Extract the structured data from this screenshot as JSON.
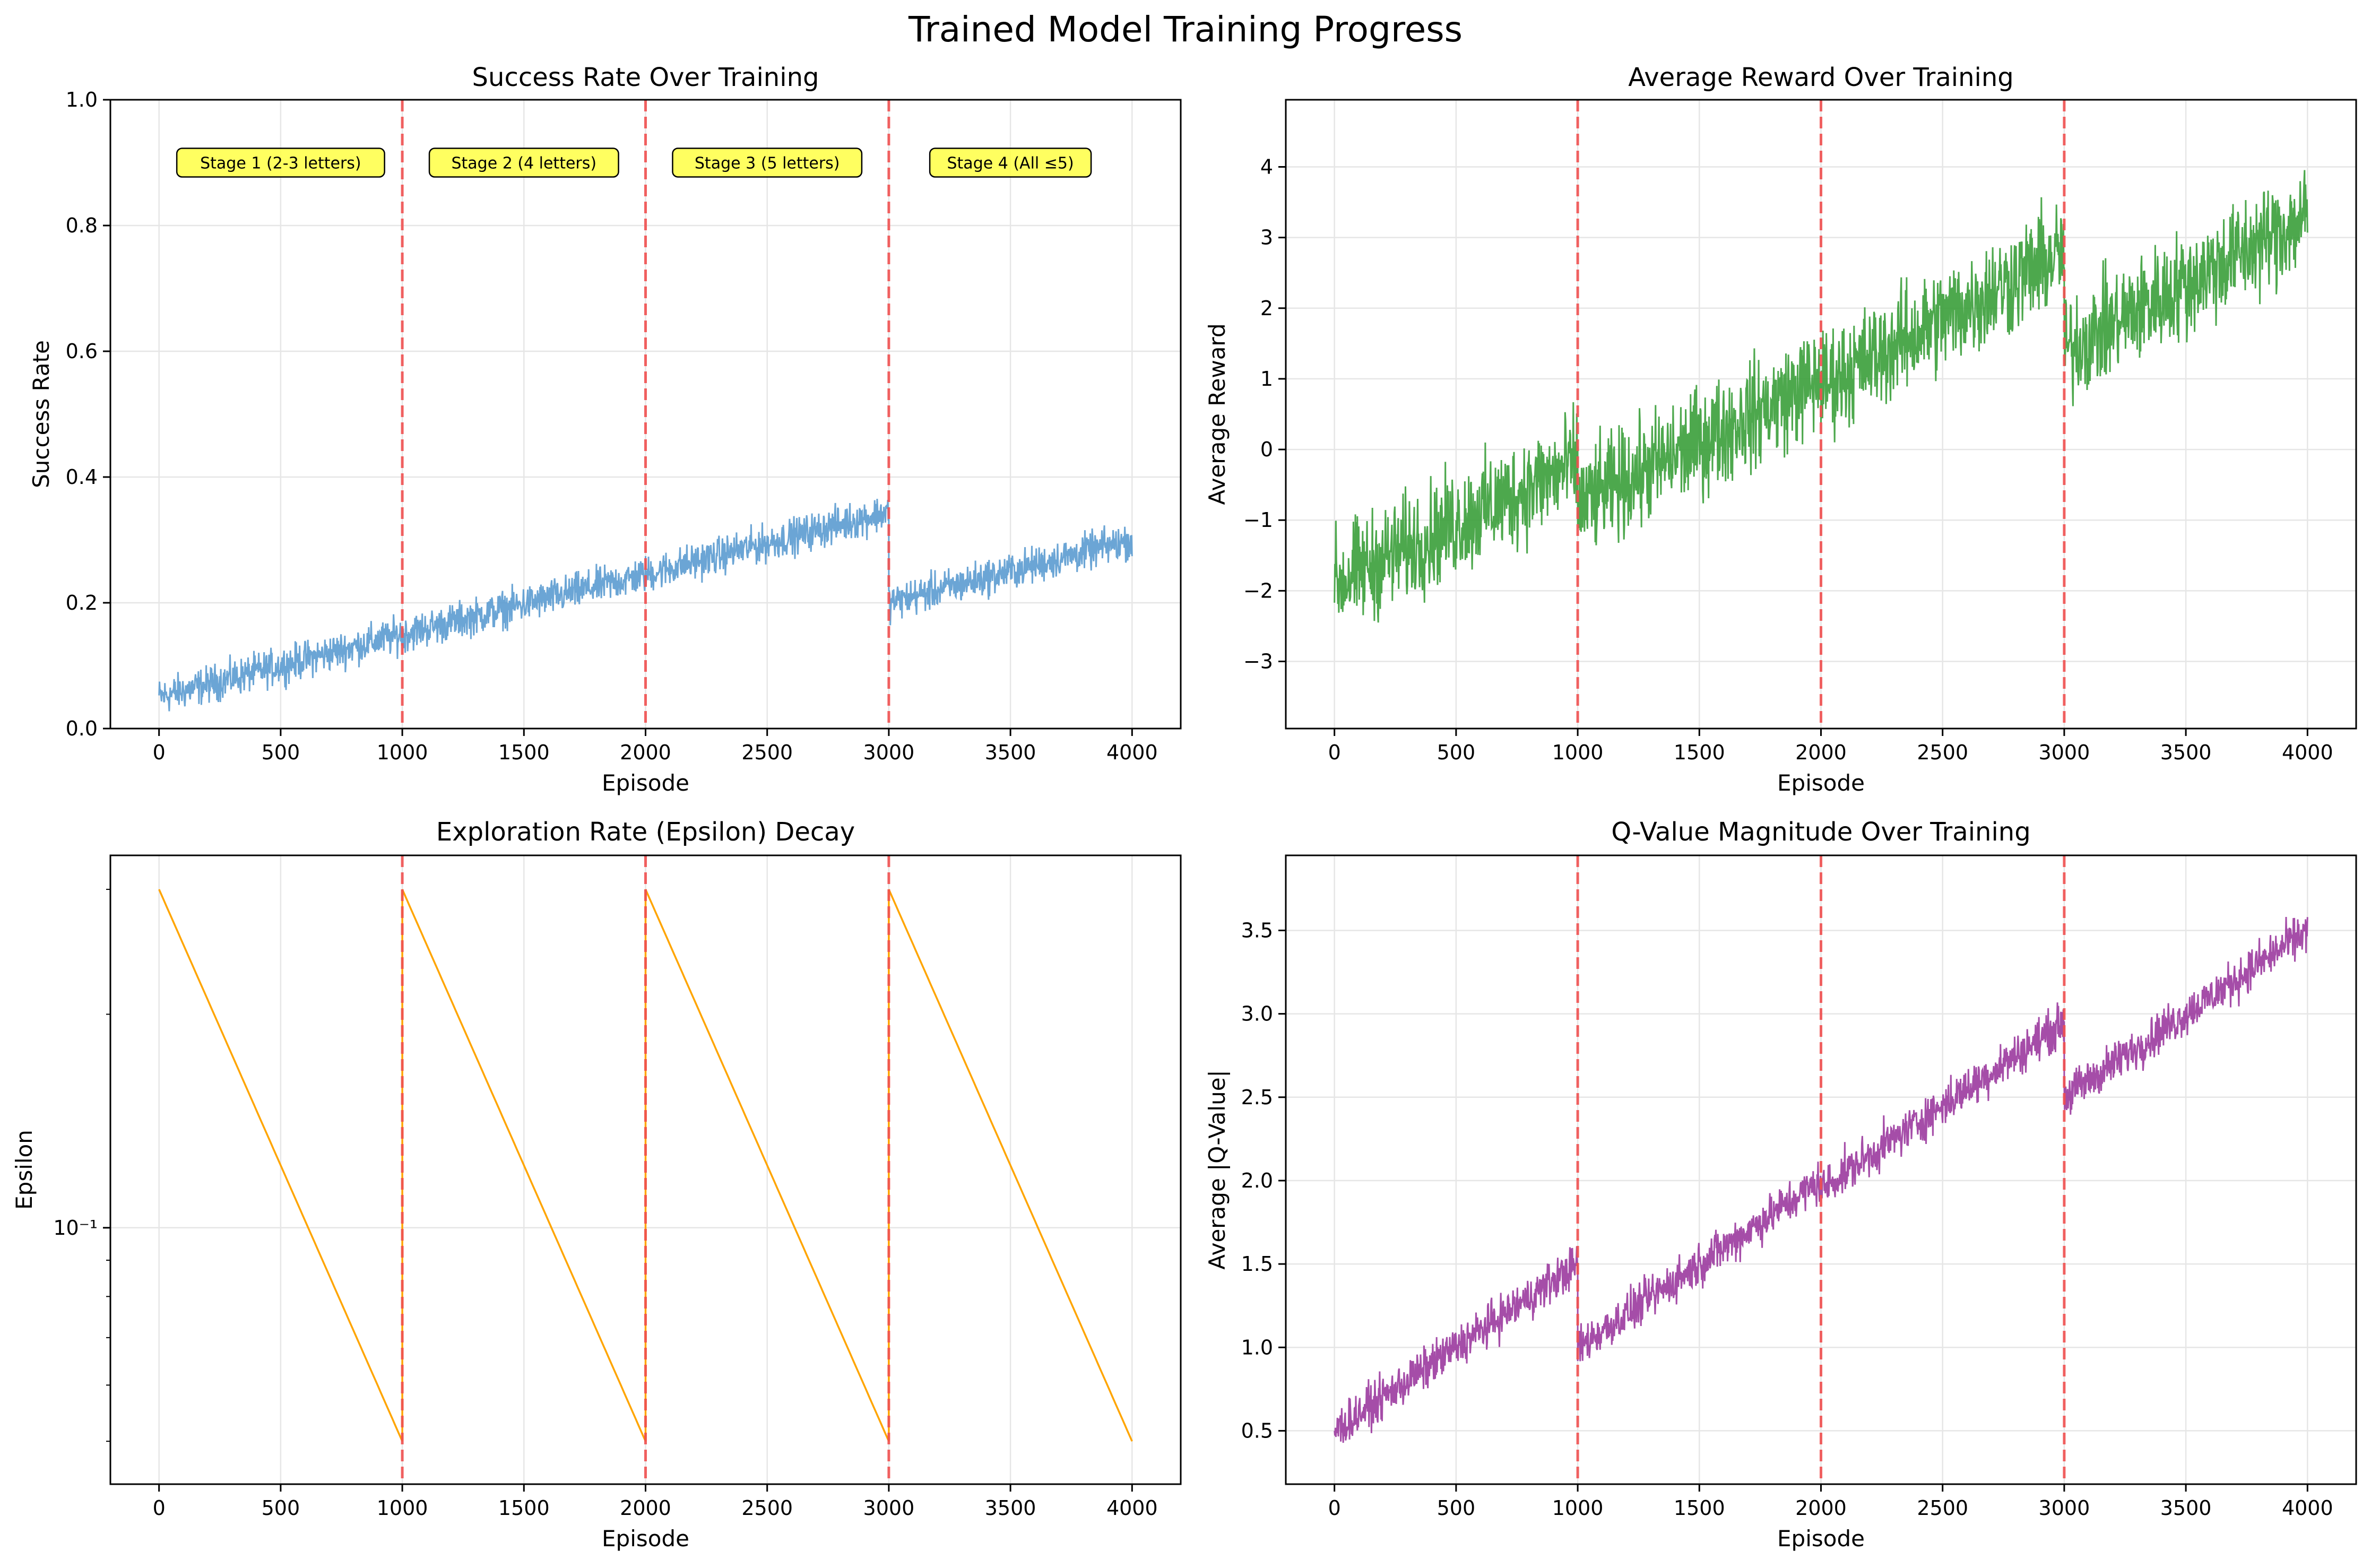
{
  "figure_title": "Trained Model Training Progress",
  "colors": {
    "success": "#5b9bd0",
    "reward": "#3a9e3a",
    "epsilon": "#ffa500",
    "qvalue": "#9b3a9e",
    "boundary": "#f05050",
    "annotation_bg": "#ffff44"
  },
  "chart_data": [
    {
      "id": "success",
      "type": "line",
      "title": "Success Rate Over Training",
      "xlabel": "Episode",
      "ylabel": "Success Rate",
      "xlim": [
        -200,
        4200
      ],
      "ylim": [
        0,
        1
      ],
      "xticks": [
        0,
        500,
        1000,
        1500,
        2000,
        2500,
        3000,
        3500,
        4000
      ],
      "yticks": [
        0.0,
        0.2,
        0.4,
        0.6,
        0.8,
        1.0
      ],
      "ytick_labels": [
        "0.0",
        "0.2",
        "0.4",
        "0.6",
        "0.8",
        "1.0"
      ],
      "stage_boundaries": [
        1000,
        2000,
        3000
      ],
      "stage_labels": [
        "Stage 1 (2-3 letters)",
        "Stage 2 (4 letters)",
        "Stage 3 (5 letters)",
        "Stage 4 (All ≤5)"
      ],
      "stage_label_y": 0.9,
      "segments": [
        {
          "x_start": 0,
          "x_end": 1000,
          "y_start": 0.05,
          "y_end": 0.15
        },
        {
          "x_start": 1000,
          "x_end": 2000,
          "y_start": 0.15,
          "y_end": 0.245
        },
        {
          "x_start": 2000,
          "x_end": 3000,
          "y_start": 0.245,
          "y_end": 0.345
        },
        {
          "x_start": 3000,
          "x_end": 4000,
          "y_start": 0.2,
          "y_end": 0.3
        }
      ],
      "noise": 0.025,
      "grid": true
    },
    {
      "id": "reward",
      "type": "line",
      "title": "Average Reward Over Training",
      "xlabel": "Episode",
      "ylabel": "Average Reward",
      "xlim": [
        -200,
        4200
      ],
      "ylim": [
        -3.95,
        4.95
      ],
      "xticks": [
        0,
        500,
        1000,
        1500,
        2000,
        2500,
        3000,
        3500,
        4000
      ],
      "yticks": [
        -3,
        -2,
        -1,
        0,
        1,
        2,
        3,
        4
      ],
      "ytick_labels": [
        "−3",
        "−2",
        "−1",
        "0",
        "1",
        "2",
        "3",
        "4"
      ],
      "stage_boundaries": [
        1000,
        2000,
        3000
      ],
      "segments": [
        {
          "x_start": 0,
          "x_end": 1000,
          "y_start": -1.9,
          "y_end": -0.2
        },
        {
          "x_start": 1000,
          "x_end": 2000,
          "y_start": -0.8,
          "y_end": 1.0
        },
        {
          "x_start": 2000,
          "x_end": 3000,
          "y_start": 0.9,
          "y_end": 2.8
        },
        {
          "x_start": 3000,
          "x_end": 4000,
          "y_start": 1.4,
          "y_end": 3.3
        }
      ],
      "noise": 0.65,
      "grid": true
    },
    {
      "id": "epsilon",
      "type": "line",
      "title": "Exploration Rate (Epsilon) Decay",
      "xlabel": "Episode",
      "ylabel": "Epsilon",
      "yscale": "log",
      "xlim": [
        -200,
        4200
      ],
      "ylim": [
        0.0435,
        0.335
      ],
      "xticks": [
        0,
        500,
        1000,
        1500,
        2000,
        2500,
        3000,
        3500,
        4000
      ],
      "yticks": [
        0.1
      ],
      "ytick_labels": [
        "10⁻¹"
      ],
      "minor_yticks": [
        0.05,
        0.06,
        0.07,
        0.08,
        0.09,
        0.2,
        0.3
      ],
      "stage_boundaries": [
        1000,
        2000,
        3000
      ],
      "segments": [
        {
          "x_start": 0,
          "x_end": 1000,
          "y_start": 0.3,
          "y_end": 0.05
        },
        {
          "x_start": 1000,
          "x_end": 2000,
          "y_start": 0.3,
          "y_end": 0.05
        },
        {
          "x_start": 2000,
          "x_end": 3000,
          "y_start": 0.3,
          "y_end": 0.05
        },
        {
          "x_start": 3000,
          "x_end": 4000,
          "y_start": 0.3,
          "y_end": 0.05
        }
      ],
      "noise": 0,
      "grid": true
    },
    {
      "id": "qvalue",
      "type": "line",
      "title": "Q-Value Magnitude Over Training",
      "xlabel": "Episode",
      "ylabel": "Average |Q-Value|",
      "xlim": [
        -200,
        4200
      ],
      "ylim": [
        0.18,
        3.95
      ],
      "xticks": [
        0,
        500,
        1000,
        1500,
        2000,
        2500,
        3000,
        3500,
        4000
      ],
      "yticks": [
        0.5,
        1.0,
        1.5,
        2.0,
        2.5,
        3.0,
        3.5
      ],
      "ytick_labels": [
        "0.5",
        "1.0",
        "1.5",
        "2.0",
        "2.5",
        "3.0",
        "3.5"
      ],
      "stage_boundaries": [
        1000,
        2000,
        3000
      ],
      "segments": [
        {
          "x_start": 0,
          "x_end": 1000,
          "y_start": 0.5,
          "y_end": 1.5
        },
        {
          "x_start": 1000,
          "x_end": 2000,
          "y_start": 1.0,
          "y_end": 2.0
        },
        {
          "x_start": 2000,
          "x_end": 3000,
          "y_start": 1.95,
          "y_end": 2.95
        },
        {
          "x_start": 3000,
          "x_end": 4000,
          "y_start": 2.5,
          "y_end": 3.5
        }
      ],
      "noise": 0.11,
      "grid": true
    }
  ]
}
